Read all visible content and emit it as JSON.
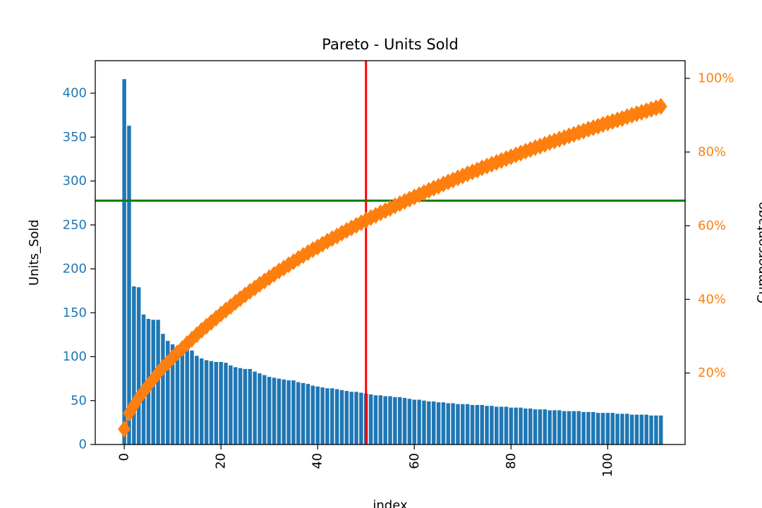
{
  "chart_data": {
    "type": "bar",
    "title": "Pareto - Units Sold",
    "xlabel": "index",
    "ylabel": "Units_Sold",
    "ylabel_right": "Cumpercentage",
    "xlim": [
      -6,
      116
    ],
    "ylim": [
      0,
      437
    ],
    "ylim_right": [
      0.6,
      104.8
    ],
    "x_ticks": [
      0,
      20,
      40,
      60,
      80,
      100
    ],
    "y_ticks": [
      0,
      50,
      100,
      150,
      200,
      250,
      300,
      350,
      400
    ],
    "y_right_ticks": [
      20,
      40,
      60,
      80,
      100
    ],
    "y_right_tick_labels": [
      "20%",
      "40%",
      "60%",
      "80%",
      "100%"
    ],
    "bar_color": "#1f77b4",
    "line_color": "#ff7f0e",
    "marker": "diamond",
    "vline_x": 50,
    "vline_color": "#ff0000",
    "hline_percent": 66.8,
    "hline_color": "#008000",
    "grid": false,
    "series": [
      {
        "name": "Units_Sold",
        "axis": "left",
        "values": [
          416,
          363,
          180,
          179,
          148,
          143,
          142,
          142,
          126,
          118,
          114,
          111,
          110,
          108,
          107,
          101,
          98,
          96,
          95,
          94,
          94,
          93,
          90,
          88,
          87,
          86,
          86,
          83,
          81,
          79,
          77,
          76,
          75,
          74,
          73,
          73,
          71,
          70,
          69,
          67,
          66,
          65,
          64,
          64,
          63,
          62,
          61,
          60,
          60,
          59,
          58,
          57,
          56,
          56,
          55,
          55,
          54,
          54,
          53,
          52,
          51,
          51,
          50,
          49,
          49,
          48,
          48,
          47,
          47,
          46,
          46,
          46,
          45,
          45,
          45,
          44,
          44,
          43,
          43,
          43,
          42,
          42,
          42,
          41,
          41,
          40,
          40,
          40,
          39,
          39,
          39,
          38,
          38,
          38,
          38,
          37,
          37,
          37,
          36,
          36,
          36,
          36,
          35,
          35,
          35,
          34,
          34,
          34,
          34,
          33,
          33,
          33
        ]
      },
      {
        "name": "Cumpercentage",
        "axis": "right",
        "values": [
          4.8,
          9.1,
          11.2,
          13.3,
          15.0,
          16.7,
          18.3,
          20.0,
          21.5,
          22.8,
          24.2,
          25.5,
          26.7,
          28.0,
          29.2,
          30.4,
          31.6,
          32.7,
          33.8,
          34.9,
          36.0,
          37.1,
          38.1,
          39.2,
          40.2,
          41.2,
          42.2,
          43.1,
          44.1,
          45.0,
          45.9,
          46.8,
          47.7,
          48.5,
          49.4,
          50.2,
          51.1,
          51.9,
          52.7,
          53.5,
          54.2,
          55.0,
          55.8,
          56.5,
          57.2,
          58.0,
          58.7,
          59.4,
          60.1,
          60.8,
          61.5,
          62.2,
          62.8,
          63.5,
          64.1,
          64.7,
          65.4,
          66.0,
          66.6,
          67.2,
          67.8,
          68.4,
          69.0,
          69.6,
          70.2,
          70.7,
          71.3,
          71.9,
          72.4,
          73.0,
          73.5,
          74.1,
          74.6,
          75.1,
          75.7,
          76.2,
          76.7,
          77.2,
          77.7,
          78.2,
          78.7,
          79.2,
          79.7,
          80.2,
          80.7,
          81.2,
          81.6,
          82.1,
          82.6,
          83.0,
          83.5,
          83.9,
          84.4,
          84.8,
          85.3,
          85.7,
          86.2,
          86.6,
          87.0,
          87.5,
          87.9,
          88.3,
          88.7,
          89.1,
          89.6,
          90.0,
          90.4,
          90.8,
          91.2,
          91.6,
          92.0,
          92.4
        ]
      }
    ]
  }
}
